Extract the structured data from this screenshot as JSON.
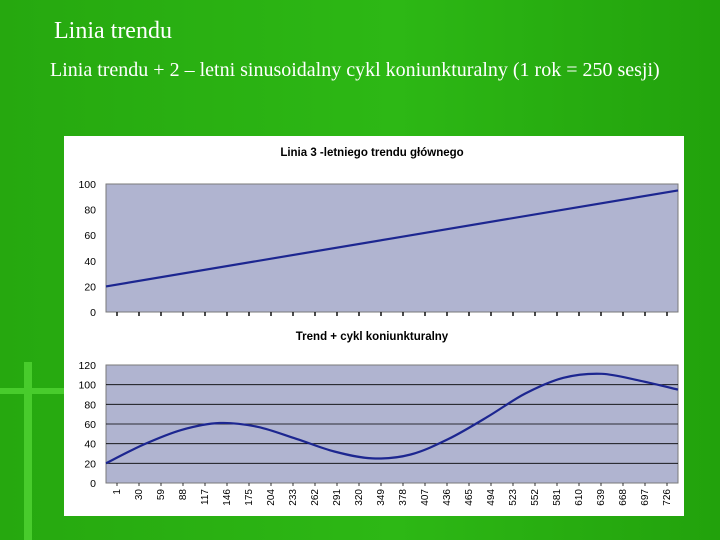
{
  "slide": {
    "title": "Linia trendu",
    "subtitle": "Linia trendu + 2 – letni sinusoidalny cykl koniunkturalny (1 rok = 250 sesji)"
  },
  "colors": {
    "background": "#2aae12",
    "plot_area": "#b0b4d0",
    "line": "#1c2690",
    "gridline": "#000000"
  },
  "chart_data": [
    {
      "type": "line",
      "title": "Linia 3 -letniego trendu głównego",
      "xlabel": "",
      "ylabel": "",
      "ylim": [
        0,
        100
      ],
      "yticks": [
        "0",
        "20",
        "40",
        "60",
        "80",
        "100"
      ],
      "grid": false,
      "legend": "none",
      "x_range": [
        1,
        750
      ],
      "series": [
        {
          "values": [
            {
              "x": 1,
              "y": 20
            },
            {
              "x": 750,
              "y": 95
            }
          ]
        }
      ]
    },
    {
      "type": "line",
      "title": "Trend + cykl koniunkturalny",
      "xlabel": "",
      "ylabel": "",
      "ylim": [
        0,
        120
      ],
      "yticks": [
        "0",
        "20",
        "40",
        "60",
        "80",
        "100",
        "120"
      ],
      "xticks": [
        "1",
        "30",
        "59",
        "88",
        "117",
        "146",
        "175",
        "204",
        "233",
        "262",
        "291",
        "320",
        "349",
        "378",
        "407",
        "436",
        "465",
        "494",
        "523",
        "552",
        "581",
        "610",
        "639",
        "668",
        "697",
        "726"
      ],
      "grid": true,
      "legend": "none",
      "x_range": [
        1,
        750
      ],
      "series": [
        {
          "values": [
            {
              "x": 1,
              "y": 20
            },
            {
              "x": 50,
              "y": 39
            },
            {
              "x": 100,
              "y": 54
            },
            {
              "x": 150,
              "y": 61
            },
            {
              "x": 200,
              "y": 57
            },
            {
              "x": 250,
              "y": 45
            },
            {
              "x": 300,
              "y": 32
            },
            {
              "x": 350,
              "y": 25
            },
            {
              "x": 400,
              "y": 29
            },
            {
              "x": 450,
              "y": 45
            },
            {
              "x": 500,
              "y": 67
            },
            {
              "x": 550,
              "y": 91
            },
            {
              "x": 600,
              "y": 107
            },
            {
              "x": 650,
              "y": 111
            },
            {
              "x": 700,
              "y": 104
            },
            {
              "x": 750,
              "y": 95
            }
          ]
        }
      ]
    }
  ]
}
